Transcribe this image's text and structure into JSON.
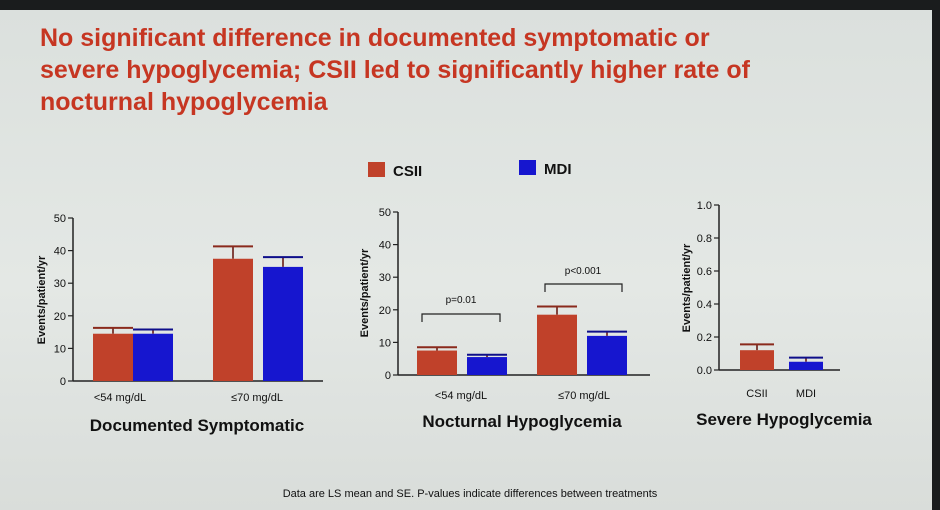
{
  "title_lines": [
    "No significant difference in documented symptomatic or",
    "severe hypoglycemia; CSII led to significantly higher rate of",
    "nocturnal hypoglycemia"
  ],
  "legend": [
    {
      "label": "CSII",
      "color": "#c0412a"
    },
    {
      "label": "MDI",
      "color": "#1616cf"
    }
  ],
  "footnote": "Data are LS mean and SE. P-values indicate differences between treatments",
  "colors": {
    "csii": "#c0412a",
    "mdi": "#1616cf",
    "axis": "#222222"
  },
  "chart_data": [
    {
      "type": "bar",
      "title": "Documented Symptomatic",
      "ylabel": "Events/patient/yr",
      "ylim": [
        0,
        50
      ],
      "yticks": [
        0,
        10,
        20,
        30,
        40,
        50
      ],
      "ytick_labels": [
        "0",
        "10",
        "20",
        "30",
        "40",
        "50"
      ],
      "categories": [
        "<54 mg/dL",
        "≤70 mg/dL"
      ],
      "series": [
        {
          "name": "CSII",
          "values": [
            14.5,
            37.5
          ],
          "se": [
            1.8,
            3.8
          ]
        },
        {
          "name": "MDI",
          "values": [
            14.5,
            35.0
          ],
          "se": [
            1.3,
            3.0
          ]
        }
      ],
      "annotations": []
    },
    {
      "type": "bar",
      "title": "Nocturnal Hypoglycemia",
      "ylabel": "Events/patient/yr",
      "ylim": [
        0,
        50
      ],
      "yticks": [
        0,
        10,
        20,
        30,
        40,
        50
      ],
      "ytick_labels": [
        "0",
        "10",
        "20",
        "30",
        "40",
        "50"
      ],
      "categories": [
        "<54 mg/dL",
        "≤70 mg/dL"
      ],
      "series": [
        {
          "name": "CSII",
          "values": [
            7.5,
            18.5
          ],
          "se": [
            1.0,
            2.5
          ]
        },
        {
          "name": "MDI",
          "values": [
            5.5,
            12.0
          ],
          "se": [
            0.7,
            1.3
          ]
        }
      ],
      "annotations": [
        "p=0.01",
        "p<0.001"
      ]
    },
    {
      "type": "bar",
      "title": "Severe Hypoglycemia",
      "ylabel": "Events/patient/yr",
      "ylim": [
        0,
        1.0
      ],
      "yticks": [
        0,
        0.2,
        0.4,
        0.6,
        0.8,
        1.0
      ],
      "ytick_labels": [
        "0.0",
        "0.2",
        "0.4",
        "0.6",
        "0.8",
        "1.0"
      ],
      "categories": [
        "CSII",
        "MDI"
      ],
      "series": [
        {
          "name": "",
          "values": [
            0.12,
            0.05
          ],
          "se": [
            0.035,
            0.025
          ]
        }
      ],
      "annotations": []
    }
  ]
}
